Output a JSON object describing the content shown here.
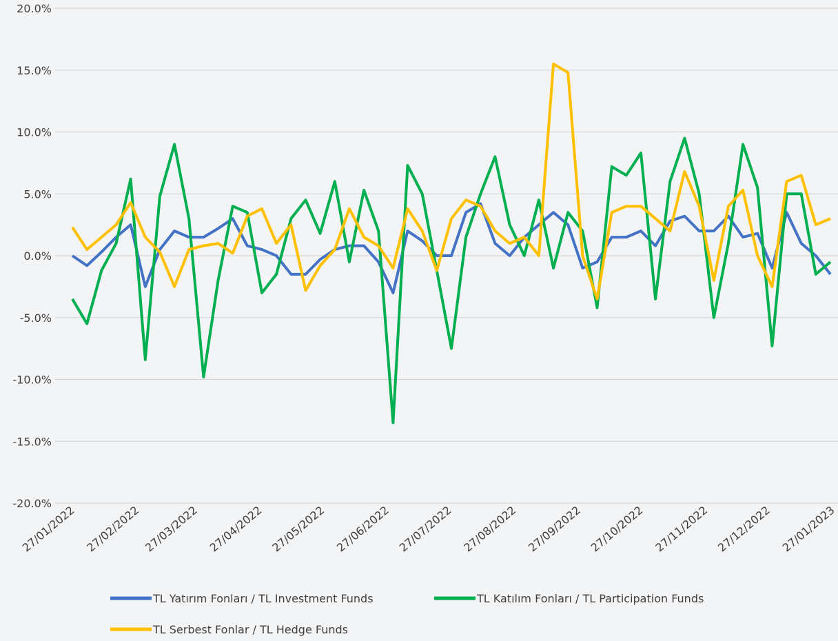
{
  "chart_data": {
    "type": "line",
    "x": [
      "27/01/2022",
      "03/02/2022",
      "10/02/2022",
      "17/02/2022",
      "24/02/2022",
      "03/03/2022",
      "10/03/2022",
      "17/03/2022",
      "24/03/2022",
      "31/03/2022",
      "07/04/2022",
      "14/04/2022",
      "21/04/2022",
      "28/04/2022",
      "05/05/2022",
      "12/05/2022",
      "19/05/2022",
      "26/05/2022",
      "02/06/2022",
      "09/06/2022",
      "16/06/2022",
      "23/06/2022",
      "30/06/2022",
      "07/07/2022",
      "14/07/2022",
      "21/07/2022",
      "28/07/2022",
      "04/08/2022",
      "11/08/2022",
      "18/08/2022",
      "25/08/2022",
      "01/09/2022",
      "08/09/2022",
      "15/09/2022",
      "22/09/2022",
      "29/09/2022",
      "06/10/2022",
      "13/10/2022",
      "20/10/2022",
      "27/10/2022",
      "03/11/2022",
      "10/11/2022",
      "17/11/2022",
      "24/11/2022",
      "01/12/2022",
      "08/12/2022",
      "15/12/2022",
      "22/12/2022",
      "29/12/2022",
      "05/01/2023",
      "12/01/2023",
      "19/01/2023",
      "26/01/2023"
    ],
    "series": [
      {
        "name": "TL Yatırım Fonları / TL Investment Funds",
        "color": "#4472c4",
        "values": [
          0,
          -0.8,
          0.3,
          1.5,
          2.5,
          -2.5,
          0.5,
          2.0,
          1.5,
          1.5,
          2.2,
          3.0,
          0.8,
          0.5,
          0.0,
          -1.5,
          -1.5,
          -0.3,
          0.5,
          0.8,
          0.8,
          -0.5,
          -3.0,
          2.0,
          1.2,
          0.0,
          0.0,
          3.5,
          4.2,
          1.0,
          0.0,
          1.5,
          2.5,
          3.5,
          2.5,
          -1.0,
          -0.5,
          1.5,
          1.5,
          2.0,
          0.8,
          2.8,
          3.2,
          2.0,
          2.0,
          3.2,
          1.5,
          1.8,
          -1.0,
          3.5,
          1.0,
          0.0,
          -1.5
        ]
      },
      {
        "name": "TL Katılım Fonları / TL Participation Funds",
        "color": "#00b050",
        "values": [
          -3.5,
          -5.5,
          -1.2,
          1.0,
          6.2,
          -8.4,
          4.8,
          9.0,
          3.0,
          -9.8,
          -2.0,
          4.0,
          3.5,
          -3.0,
          -1.5,
          3.0,
          4.5,
          1.8,
          6.0,
          -0.5,
          5.3,
          2.0,
          -13.5,
          7.3,
          5.0,
          -1.2,
          -7.5,
          1.5,
          5.0,
          8.0,
          2.5,
          0.0,
          4.5,
          -1.0,
          3.5,
          2.0,
          -4.2,
          7.2,
          6.5,
          8.3,
          -3.5,
          6.0,
          9.5,
          5.0,
          -5.0,
          1.0,
          9.0,
          5.5,
          -7.3,
          5.0,
          5.0,
          -1.5,
          -0.5
        ]
      },
      {
        "name": "TL Serbest Fonlar / TL Hedge Funds",
        "color": "#ffc000",
        "values": [
          2.3,
          0.5,
          1.5,
          2.5,
          4.3,
          1.5,
          0.3,
          -2.5,
          0.5,
          0.8,
          1.0,
          0.2,
          3.2,
          3.8,
          1.0,
          2.5,
          -2.8,
          -0.8,
          0.5,
          3.8,
          1.5,
          0.8,
          -1.0,
          3.8,
          2.0,
          -1.2,
          3.0,
          4.5,
          4.0,
          2.0,
          1.0,
          1.5,
          0.0,
          15.5,
          14.8,
          0.0,
          -3.5,
          3.5,
          4.0,
          4.0,
          3.0,
          2.0,
          6.8,
          4.0,
          -2.0,
          4.0,
          5.3,
          0.0,
          -2.5,
          6.0,
          6.5,
          2.5,
          3.0
        ]
      }
    ],
    "xlim": [
      "27/01/2022",
      "27/01/2023"
    ],
    "xticks": [
      "27/01/2022",
      "27/02/2022",
      "27/03/2022",
      "27/04/2022",
      "27/05/2022",
      "27/06/2022",
      "27/07/2022",
      "27/08/2022",
      "27/09/2022",
      "27/10/2022",
      "27/11/2022",
      "27/12/2022",
      "27/01/2023"
    ],
    "ylim": [
      -20,
      20
    ],
    "yticks": [
      {
        "value": -20,
        "label": "-20.0%"
      },
      {
        "value": -15,
        "label": "-15.0%"
      },
      {
        "value": -10,
        "label": "-10.0%"
      },
      {
        "value": -5,
        "label": "-5.0%"
      },
      {
        "value": 0,
        "label": "0.0%"
      },
      {
        "value": 5,
        "label": "5.0%"
      },
      {
        "value": 10,
        "label": "10.0%"
      },
      {
        "value": 15,
        "label": "15.0%"
      },
      {
        "value": 20,
        "label": "20.0%"
      }
    ],
    "grid": true
  }
}
